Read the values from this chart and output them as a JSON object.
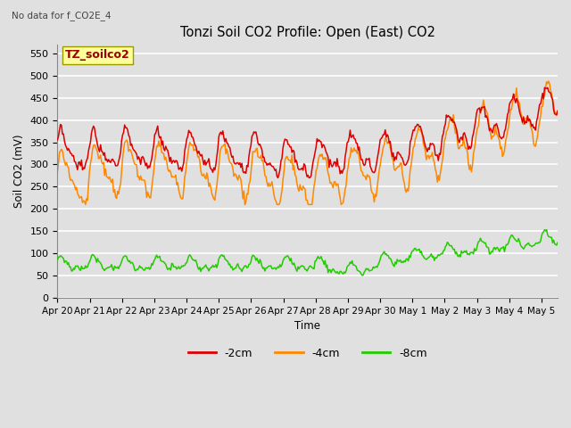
{
  "title": "Tonzi Soil CO2 Profile: Open (East) CO2",
  "subtitle": "No data for f_CO2E_4",
  "ylabel": "Soil CO2 (mV)",
  "xlabel": "Time",
  "legend_label": "TZ_soilco2",
  "series_labels": [
    "-2cm",
    "-4cm",
    "-8cm"
  ],
  "series_colors": [
    "#dd0000",
    "#ff8800",
    "#22cc00"
  ],
  "ylim": [
    0,
    570
  ],
  "yticks": [
    0,
    50,
    100,
    150,
    200,
    250,
    300,
    350,
    400,
    450,
    500,
    550
  ],
  "bg_color": "#e0e0e0",
  "grid_color": "#ffffff",
  "tick_labels": [
    "Apr 20",
    "Apr 21",
    "Apr 22",
    "Apr 23",
    "Apr 24",
    "Apr 25",
    "Apr 26",
    "Apr 27",
    "Apr 28",
    "Apr 29",
    "Apr 30",
    "May 1",
    "May 2",
    "May 3",
    "May 4",
    "May 5"
  ],
  "tick_positions": [
    0,
    1,
    2,
    3,
    4,
    5,
    6,
    7,
    8,
    9,
    10,
    11,
    12,
    13,
    14,
    15
  ],
  "xlim_max": 15.5
}
